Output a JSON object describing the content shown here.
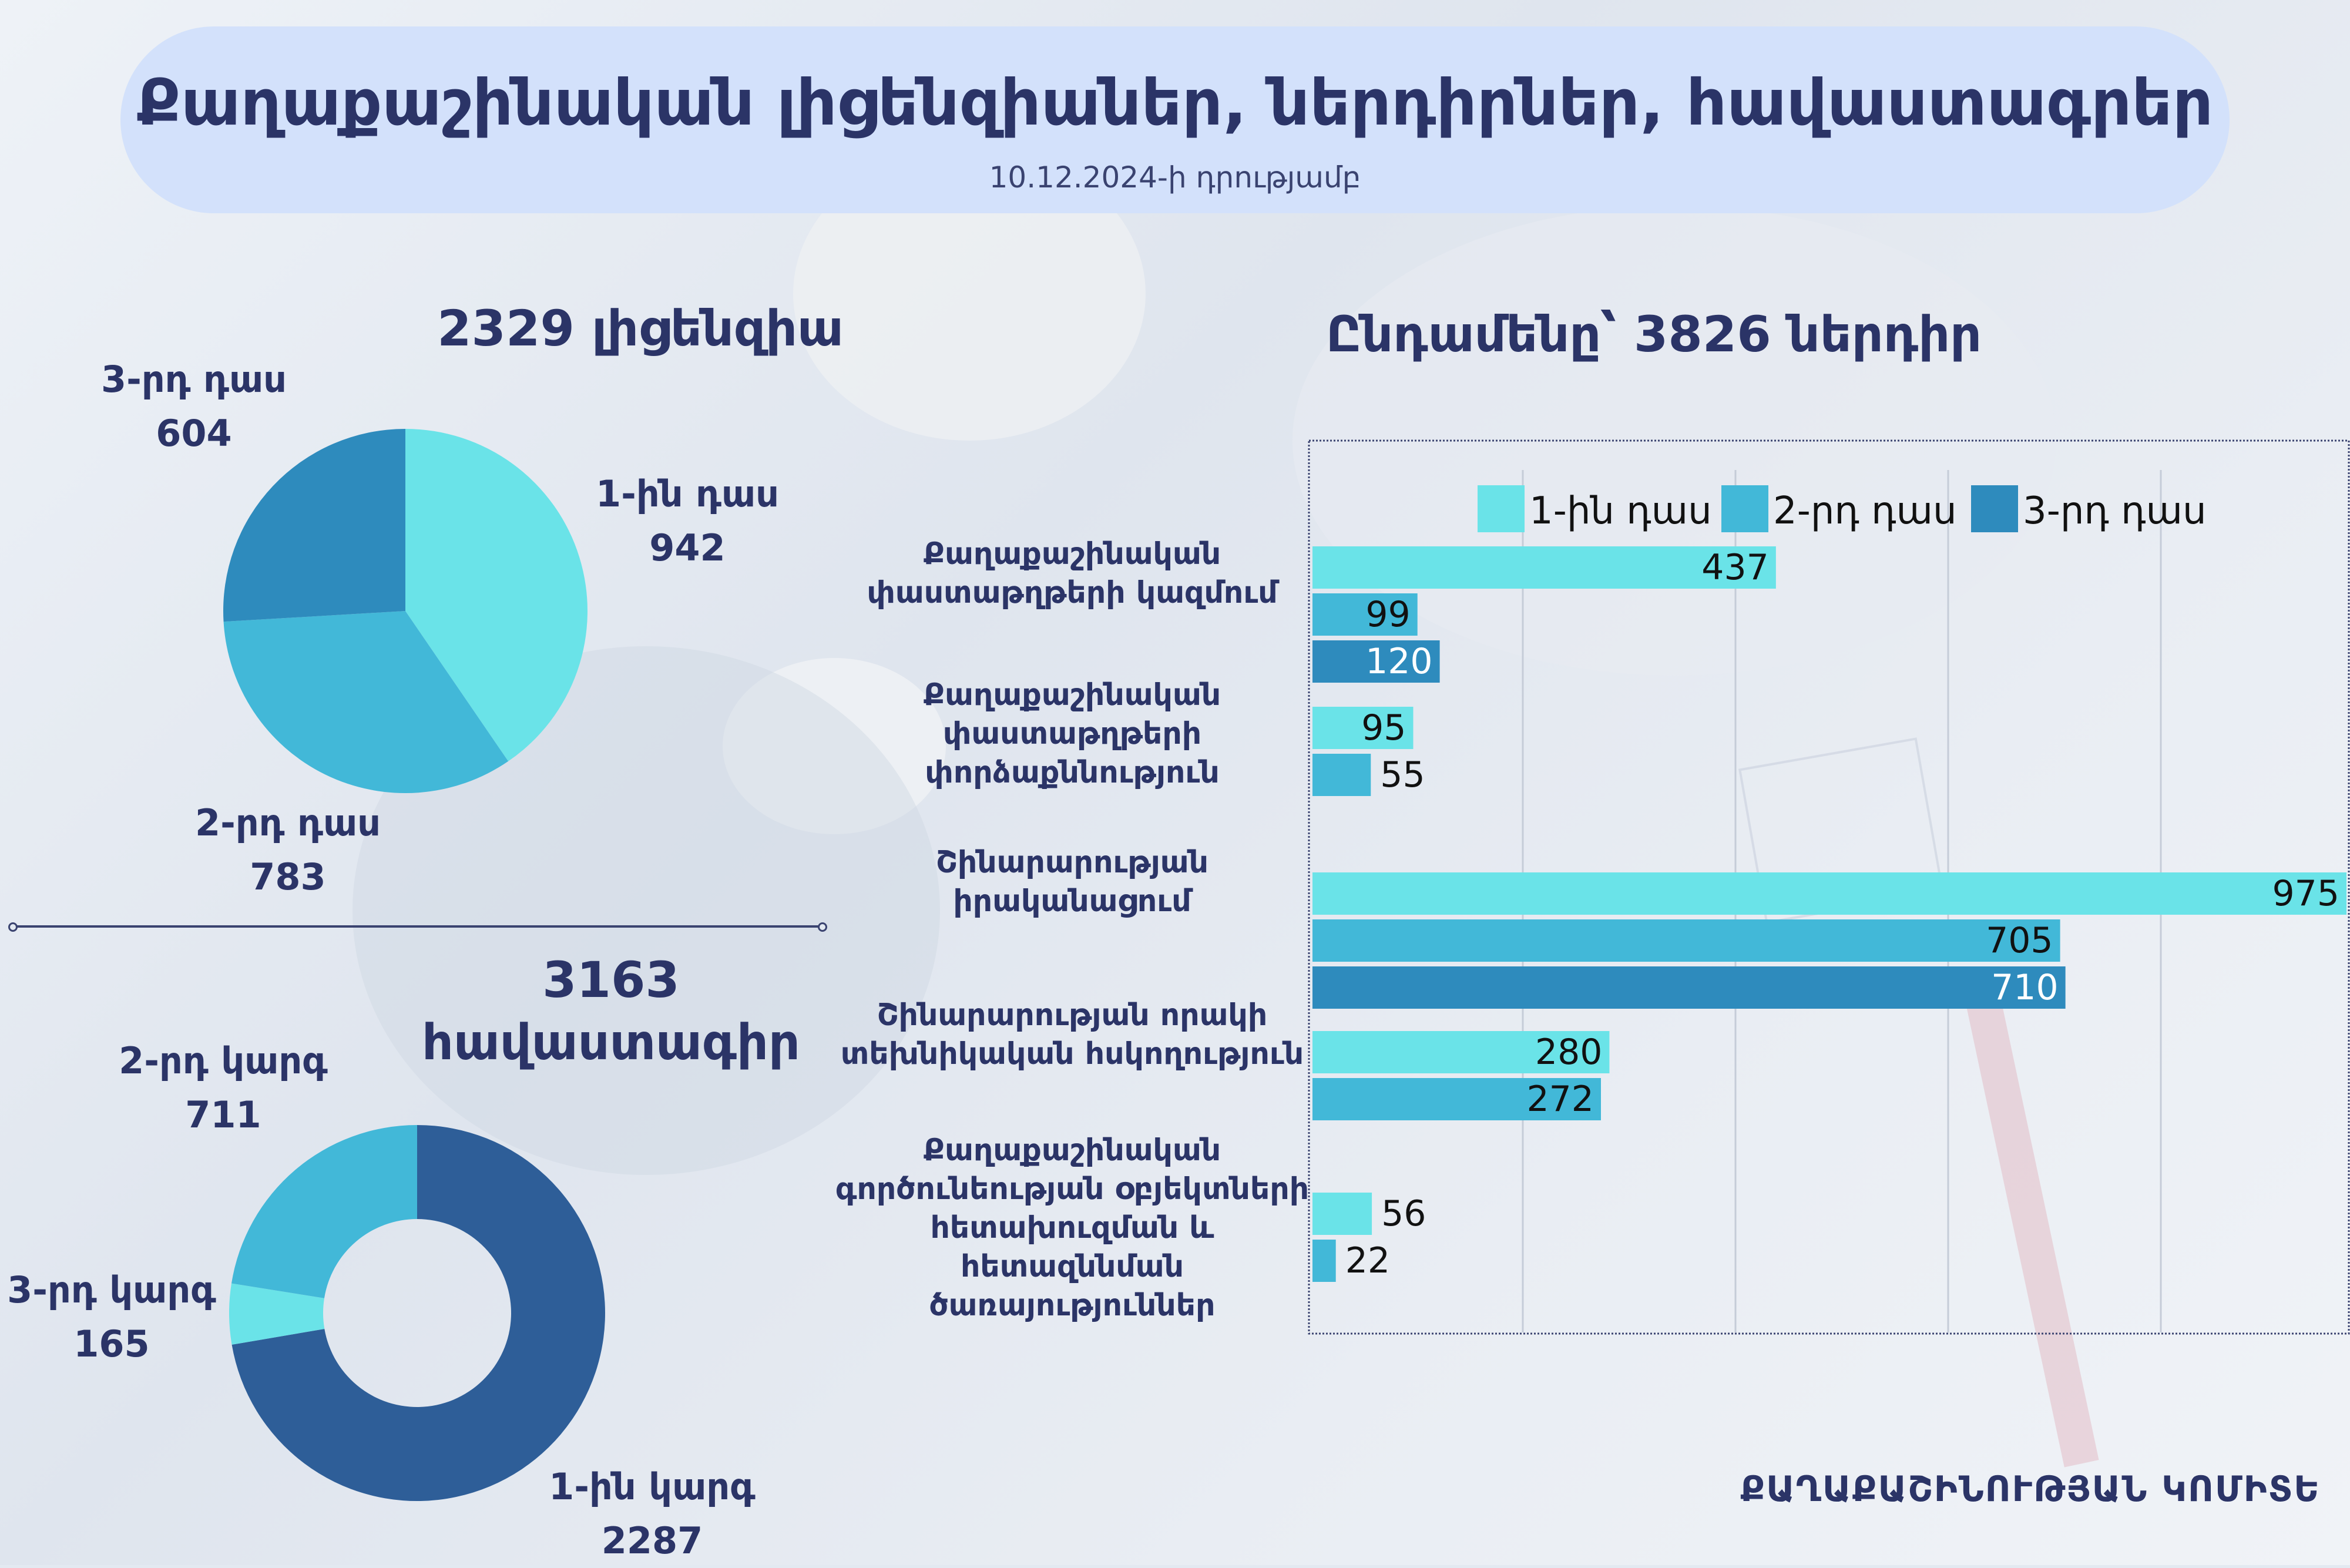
{
  "header": {
    "title": "Քաղաքաշինական լիցենզիաներ, ներդիրներ, հավաստագրեր",
    "subtitle": "10.12.2024-ի դրությամբ"
  },
  "footer": {
    "organization": "ՔԱՂԱՔԱՇԻՆՈՒԹՅԱՆ ԿՈՄԻՏԵ"
  },
  "colors": {
    "class1": "#6ae3e8",
    "class2": "#42b8d8",
    "class3": "#2e8bbd",
    "level1": "#2e5e98"
  },
  "chart_data": [
    {
      "type": "pie",
      "title": "2329 լիցենզիա",
      "slices": [
        {
          "label": "1-ին դաս",
          "value": 942
        },
        {
          "label": "2-րդ դաս",
          "value": 783
        },
        {
          "label": "3-րդ դաս",
          "value": 604
        }
      ]
    },
    {
      "type": "pie",
      "subtype": "donut",
      "title_line1": "3163",
      "title_line2": "հավաստագիր",
      "slices": [
        {
          "label": "1-ին կարգ",
          "value": 2287
        },
        {
          "label": "3-րդ կարգ",
          "value": 165
        },
        {
          "label": "2-րդ կարգ",
          "value": 711
        }
      ]
    },
    {
      "type": "bar",
      "orientation": "horizontal",
      "title": "Ընդամենը՝ 3826 ներդիր",
      "xlim": [
        0,
        975
      ],
      "series_names": [
        "1-ին դաս",
        "2-րդ դաս",
        "3-րդ դաս"
      ],
      "categories": [
        {
          "lines": [
            "Քաղաքաշինական",
            "փաստաթղթերի կազմում"
          ],
          "values": [
            437,
            99,
            120
          ]
        },
        {
          "lines": [
            "Քաղաքաշինական",
            "փաստաթղթերի",
            "փորձաքննություն"
          ],
          "values": [
            95,
            55
          ]
        },
        {
          "lines": [
            "Շինարարության",
            "իրականացում"
          ],
          "values": [
            975,
            705,
            710
          ]
        },
        {
          "lines": [
            "Շինարարության որակի",
            "տեխնիկական հսկողություն"
          ],
          "values": [
            280,
            272
          ]
        },
        {
          "lines": [
            "Քաղաքաշինական",
            "գործունեության օբյեկտների",
            "հետախուզման և",
            "հետազննման",
            "ծառայություններ"
          ],
          "values": [
            56,
            22
          ]
        }
      ]
    }
  ]
}
